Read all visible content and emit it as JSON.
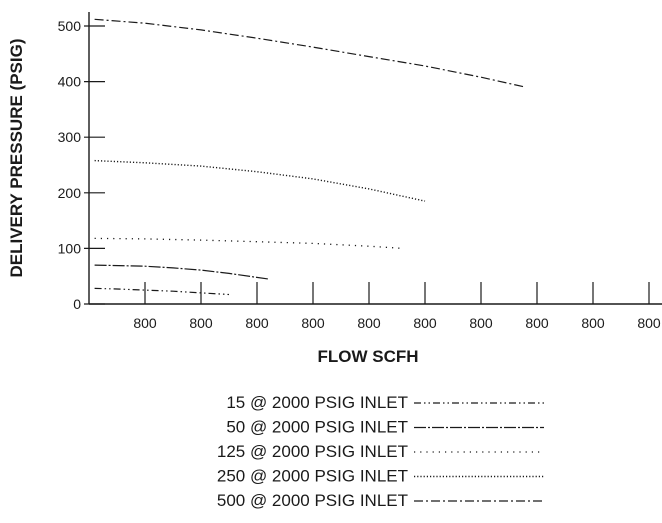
{
  "chart_data": {
    "type": "line",
    "xlabel": "FLOW SCFH",
    "ylabel": "DELIVERY PRESSURE (PSIG)",
    "x_ticks": [
      "800",
      "800",
      "800",
      "800",
      "800",
      "800",
      "800",
      "800",
      "800",
      "800",
      "800"
    ],
    "x_domain": [
      0,
      11
    ],
    "ylim": [
      0,
      520
    ],
    "y_ticks": [
      0,
      100,
      200,
      300,
      400,
      500
    ],
    "grid": false,
    "legend_position": "bottom-center",
    "series": [
      {
        "name": "15 @ 2000 PSIG INLET",
        "style": "dash-dot-dot",
        "x": [
          0.1,
          0.5,
          1.0,
          1.5,
          2.0,
          2.5
        ],
        "y": [
          28,
          27,
          25,
          23,
          20,
          17
        ]
      },
      {
        "name": "50 @ 2000 PSIG INLET",
        "style": "long-dash-dot",
        "x": [
          0.1,
          1.0,
          1.5,
          2.0,
          2.5,
          3.2
        ],
        "y": [
          70,
          68,
          65,
          61,
          55,
          45
        ]
      },
      {
        "name": "125 @ 2000 PSIG INLET",
        "style": "dotted",
        "x": [
          0.1,
          1.0,
          2.0,
          3.0,
          4.0,
          5.0,
          5.6
        ],
        "y": [
          118,
          117,
          115,
          112,
          109,
          104,
          100
        ]
      },
      {
        "name": "250 @ 2000 PSIG INLET",
        "style": "fine-dotted",
        "x": [
          0.1,
          1.0,
          2.0,
          3.0,
          4.0,
          5.0,
          6.0
        ],
        "y": [
          258,
          254,
          248,
          238,
          225,
          207,
          185
        ]
      },
      {
        "name": "500 @ 2000 PSIG INLET",
        "style": "dash-dot",
        "x": [
          0.1,
          1.0,
          2.0,
          3.0,
          4.0,
          5.0,
          6.0,
          7.0,
          7.8
        ],
        "y": [
          512,
          505,
          493,
          478,
          462,
          445,
          428,
          408,
          390
        ]
      }
    ]
  }
}
